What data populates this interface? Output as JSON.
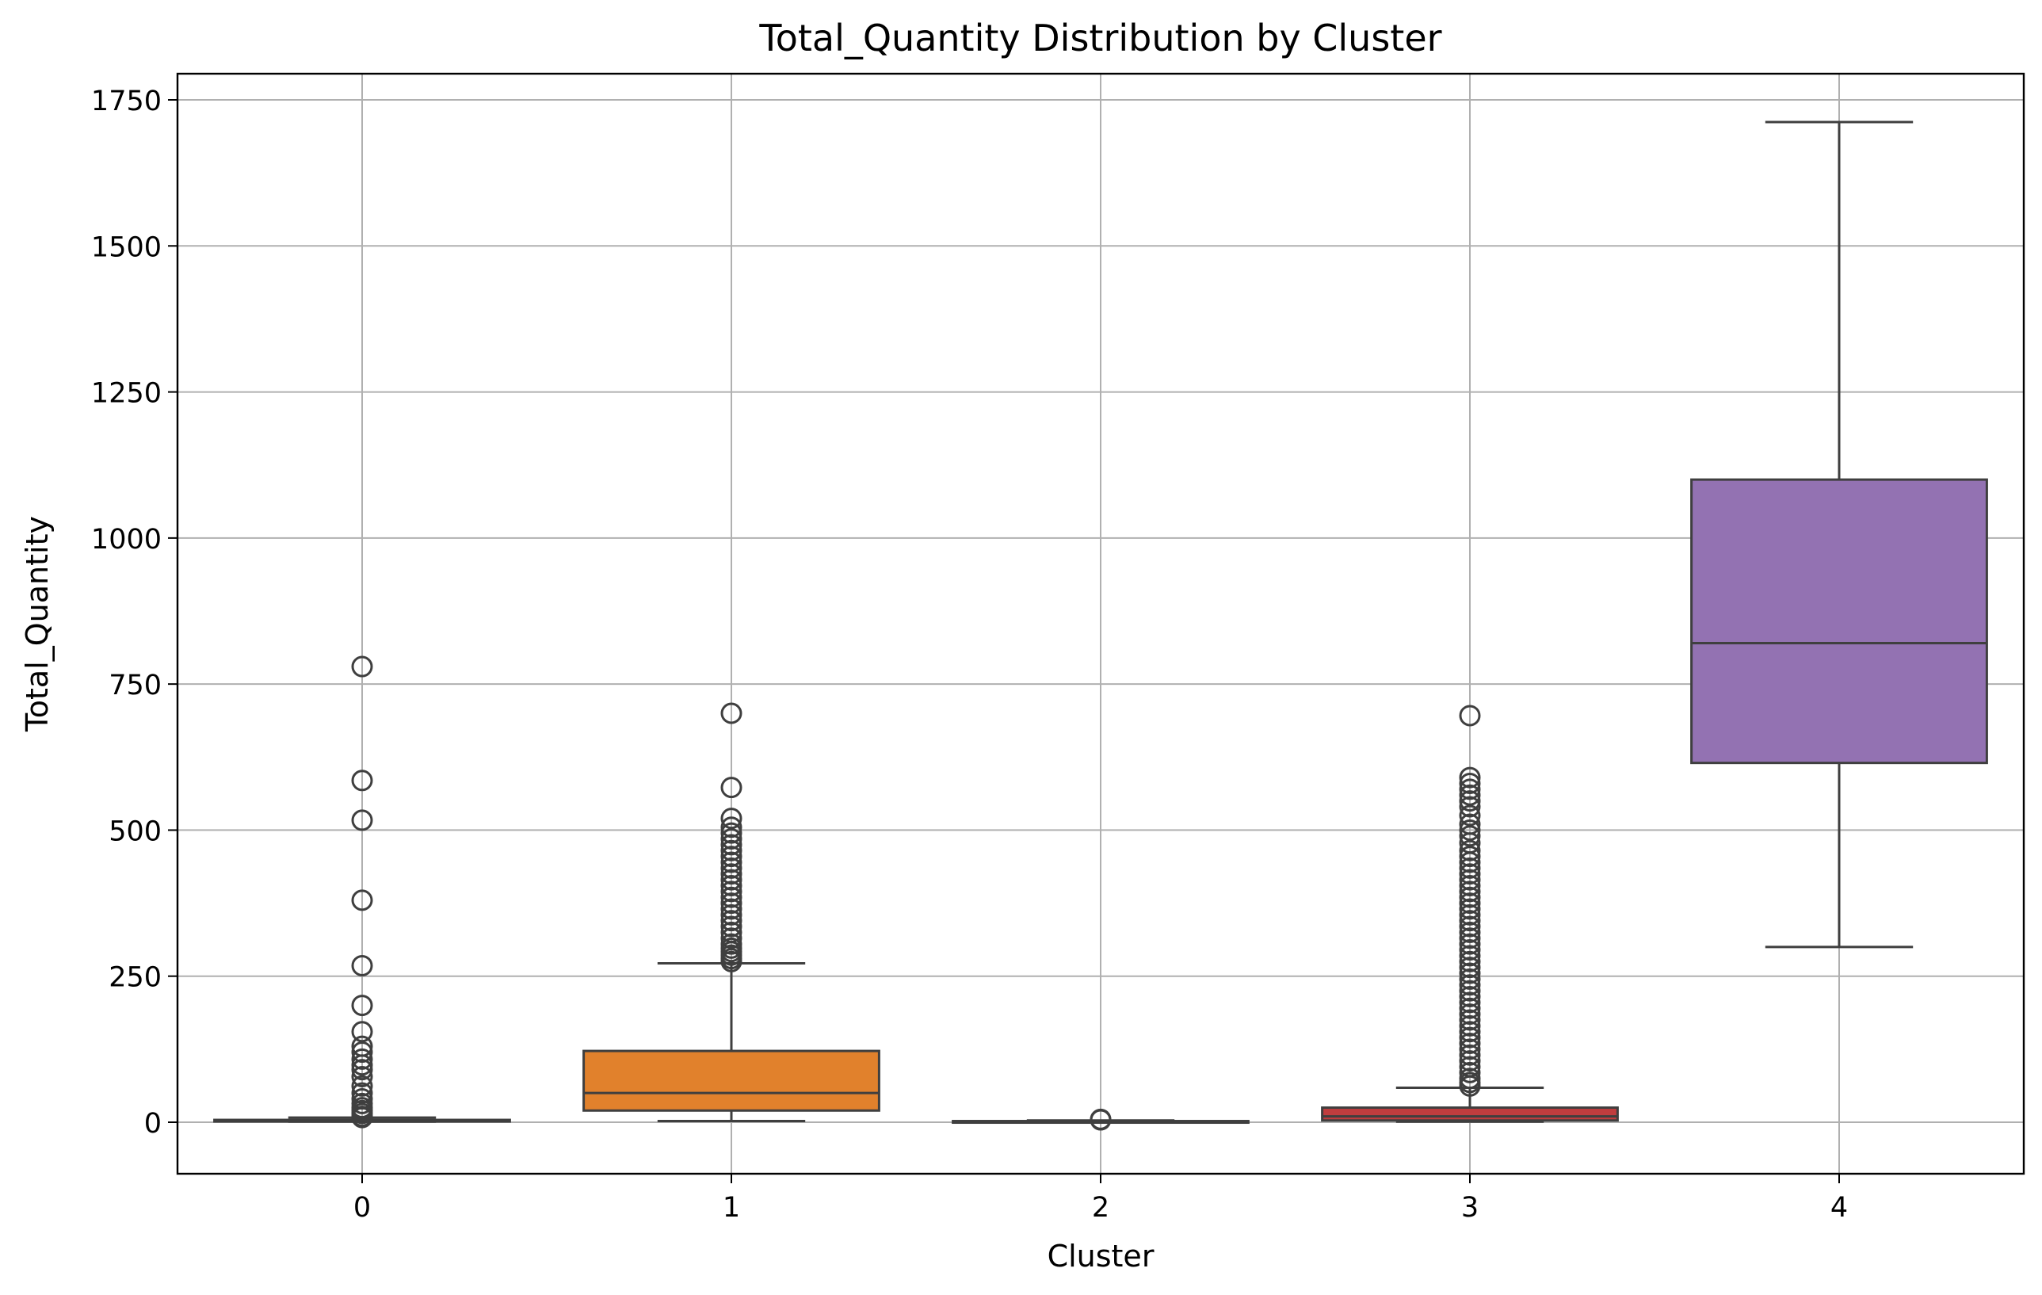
{
  "chart_data": {
    "type": "box",
    "title": "Total_Quantity Distribution by Cluster",
    "xlabel": "Cluster",
    "ylabel": "Total_Quantity",
    "categories": [
      "0",
      "1",
      "2",
      "3",
      "4"
    ],
    "ylim": [
      -85,
      1800
    ],
    "yticks": [
      0,
      250,
      500,
      750,
      1000,
      1250,
      1500,
      1750
    ],
    "ytick_labels": [
      "0",
      "250",
      "500",
      "750",
      "1000",
      "1250",
      "1500",
      "1750"
    ],
    "grid": true,
    "boxes": [
      {
        "category": "0",
        "color": "#3274a1",
        "whisker_low": 1,
        "q1": 2,
        "median": 3,
        "q3": 4,
        "whisker_high": 8,
        "outliers": [
          780,
          585,
          517,
          380,
          268,
          200,
          155,
          130,
          120,
          108,
          98,
          90,
          78,
          62,
          50,
          40,
          32,
          25,
          20,
          15,
          10,
          8
        ]
      },
      {
        "category": "1",
        "color": "#e1812c",
        "whisker_low": 2,
        "q1": 20,
        "median": 50,
        "q3": 122,
        "whisker_high": 272,
        "outliers": [
          700,
          573,
          520,
          505,
          495,
          485,
          475,
          465,
          455,
          445,
          435,
          425,
          415,
          405,
          395,
          385,
          375,
          365,
          355,
          345,
          335,
          325,
          315,
          305,
          298,
          292,
          286,
          280,
          275
        ]
      },
      {
        "category": "2",
        "color": "#3a923a",
        "whisker_low": 1,
        "q1": 1,
        "median": 1,
        "q3": 2,
        "whisker_high": 3,
        "outliers": [
          5,
          4
        ]
      },
      {
        "category": "3",
        "color": "#c03d3e",
        "whisker_low": 1,
        "q1": 3,
        "median": 10,
        "q3": 25,
        "whisker_high": 59,
        "outliers": [
          696,
          590,
          580,
          570,
          560,
          550,
          540,
          525,
          510,
          500,
          490,
          478,
          465,
          455,
          445,
          435,
          425,
          415,
          405,
          395,
          385,
          375,
          365,
          355,
          345,
          335,
          325,
          315,
          305,
          295,
          285,
          275,
          265,
          255,
          245,
          235,
          225,
          215,
          205,
          195,
          185,
          175,
          165,
          155,
          145,
          135,
          125,
          115,
          105,
          95,
          85,
          75,
          68,
          62
        ]
      },
      {
        "category": "4",
        "color": "#9372b2",
        "whisker_low": 300,
        "q1": 615,
        "median": 820,
        "q3": 1100,
        "whisker_high": 1712,
        "outliers": []
      }
    ]
  }
}
